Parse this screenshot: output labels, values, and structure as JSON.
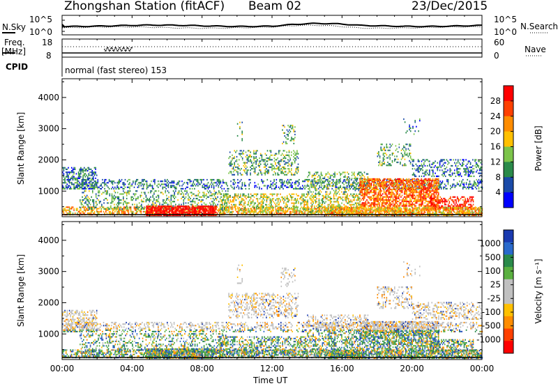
{
  "header": {
    "station": "Zhongshan Station (fitACF)",
    "beam": "Beam 02",
    "date": "23/Dec/2015"
  },
  "summary_panels": {
    "nsky_label": "N.Sky",
    "nsky_ticks": [
      "10^5",
      "10^0"
    ],
    "nsearch_label": "N.Search",
    "nsearch_ticks": [
      "10^5",
      "10^0"
    ],
    "freq_label": "Freq.",
    "freq_unit": "[MHz]",
    "freq_ticks": [
      "18",
      "8"
    ],
    "nave_label": "Nave",
    "nave_ticks": [
      "60",
      "0"
    ],
    "cpid_label": "CPID",
    "cpid_value": "normal (fast stereo) 153"
  },
  "chart_data": [
    {
      "type": "heatmap",
      "panel": "power",
      "ylabel": "Slant Range [km]",
      "y_ticks": [
        1000,
        2000,
        3000,
        4000
      ],
      "ylim": [
        180,
        4600
      ],
      "x_ticks": [
        "00:00",
        "04:00",
        "08:00",
        "12:00",
        "16:00",
        "20:00",
        "00:00"
      ],
      "xlim_hours": [
        0,
        24
      ],
      "colorbar": {
        "label": "Power [dB]",
        "ticks": [
          "28",
          "24",
          "20",
          "16",
          "12",
          "8",
          "4"
        ],
        "colors": [
          "#ff0000",
          "#ff4000",
          "#ff8c00",
          "#ffc000",
          "#7cc44a",
          "#2a8a4a",
          "#1a4aa8",
          "#0000ff"
        ]
      }
    },
    {
      "type": "heatmap",
      "panel": "velocity",
      "ylabel": "Slant Range [km]",
      "y_ticks": [
        1000,
        2000,
        3000,
        4000
      ],
      "ylim": [
        180,
        4600
      ],
      "x_ticks": [
        "00:00",
        "04:00",
        "08:00",
        "12:00",
        "16:00",
        "20:00",
        "00:00"
      ],
      "xlabel": "Time UT",
      "xlim_hours": [
        0,
        24
      ],
      "colorbar": {
        "label": "Velocity [m s⁻¹]",
        "ticks": [
          "1000",
          "500",
          "100",
          "25",
          "-25",
          "-100",
          "-500",
          "-1000"
        ],
        "colors": [
          "#1a3ab0",
          "#2a6acc",
          "#2a8a4a",
          "#5ab040",
          "#c0c0c0",
          "#c0c0c0",
          "#ffc000",
          "#ff8c00",
          "#ff4000",
          "#ff0000"
        ]
      }
    }
  ]
}
